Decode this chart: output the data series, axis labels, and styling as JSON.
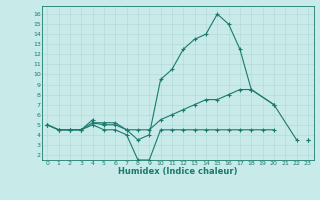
{
  "line1_x": [
    0,
    1,
    2,
    3,
    4,
    4,
    5,
    6,
    7,
    8,
    9,
    10,
    11,
    12,
    13,
    14,
    15,
    16,
    17,
    18,
    20,
    22
  ],
  "line1_y": [
    5.0,
    4.5,
    4.5,
    4.5,
    5.5,
    5.2,
    5.2,
    5.2,
    4.5,
    3.5,
    4.0,
    9.5,
    10.5,
    12.5,
    13.5,
    14.0,
    16.0,
    15.0,
    12.5,
    8.5,
    7.0,
    3.5
  ],
  "line2_x": [
    0,
    1,
    2,
    3,
    4,
    5,
    6,
    7,
    8,
    9,
    10,
    11,
    12,
    13,
    14,
    15,
    16,
    17,
    18,
    20,
    22,
    23
  ],
  "line2_y": [
    5.0,
    4.5,
    4.5,
    4.5,
    5.2,
    5.0,
    5.0,
    4.5,
    4.5,
    4.5,
    5.5,
    6.0,
    6.5,
    7.0,
    7.5,
    7.5,
    8.0,
    8.5,
    8.5,
    7.0,
    null,
    3.5
  ],
  "line3_x": [
    0,
    1,
    2,
    3,
    4,
    5,
    6,
    7,
    8,
    9,
    10,
    11,
    12,
    13,
    14,
    15,
    16,
    17,
    18,
    19,
    20,
    22,
    23
  ],
  "line3_y": [
    5.0,
    4.5,
    4.5,
    4.5,
    5.0,
    4.5,
    4.5,
    4.0,
    1.5,
    1.5,
    4.5,
    4.5,
    4.5,
    4.5,
    4.5,
    4.5,
    4.5,
    4.5,
    4.5,
    4.5,
    4.5,
    null,
    3.5
  ],
  "color": "#1a7a6e",
  "bg_color": "#c8eae8",
  "grid_color": "#afd8d4",
  "xlabel": "Humidex (Indice chaleur)",
  "ylim": [
    1.5,
    16.8
  ],
  "xlim": [
    -0.5,
    23.5
  ],
  "yticks": [
    2,
    3,
    4,
    5,
    6,
    7,
    8,
    9,
    10,
    11,
    12,
    13,
    14,
    15,
    16
  ],
  "xticks": [
    0,
    1,
    2,
    3,
    4,
    5,
    6,
    7,
    8,
    9,
    10,
    11,
    12,
    13,
    14,
    15,
    16,
    17,
    18,
    19,
    20,
    21,
    22,
    23
  ]
}
